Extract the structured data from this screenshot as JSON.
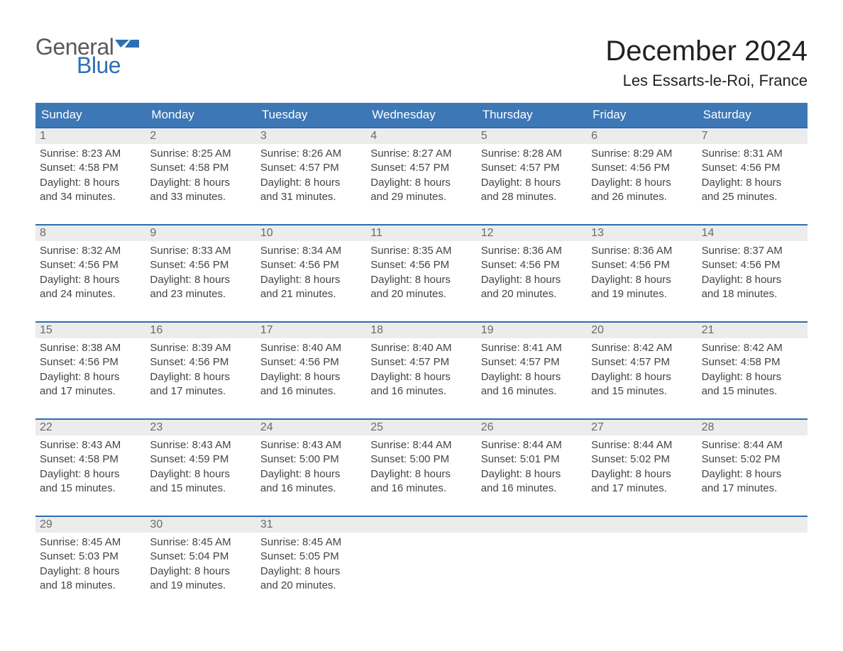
{
  "logo": {
    "line1": "General",
    "line2": "Blue"
  },
  "title": "December 2024",
  "location": "Les Essarts-le-Roi, France",
  "colors": {
    "header_blue": "#3d77b6",
    "accent_blue": "#2a6db3",
    "row_gray": "#ececec",
    "logo_gray": "#595959",
    "logo_blue": "#2e6fb3",
    "page_bg": "#ffffff",
    "text_dark": "#2b2b2b",
    "text_gray": "#444444"
  },
  "layout": {
    "columns": 7,
    "font_family": "Arial",
    "month_title_fontsize": 40,
    "location_fontsize": 22,
    "weekday_fontsize": 17,
    "daynum_fontsize": 16,
    "body_fontsize": 15
  },
  "weekdays": [
    "Sunday",
    "Monday",
    "Tuesday",
    "Wednesday",
    "Thursday",
    "Friday",
    "Saturday"
  ],
  "weeks": [
    [
      {
        "day": "1",
        "sunrise": "Sunrise: 8:23 AM",
        "sunset": "Sunset: 4:58 PM",
        "daylight1": "Daylight: 8 hours",
        "daylight2": "and 34 minutes."
      },
      {
        "day": "2",
        "sunrise": "Sunrise: 8:25 AM",
        "sunset": "Sunset: 4:58 PM",
        "daylight1": "Daylight: 8 hours",
        "daylight2": "and 33 minutes."
      },
      {
        "day": "3",
        "sunrise": "Sunrise: 8:26 AM",
        "sunset": "Sunset: 4:57 PM",
        "daylight1": "Daylight: 8 hours",
        "daylight2": "and 31 minutes."
      },
      {
        "day": "4",
        "sunrise": "Sunrise: 8:27 AM",
        "sunset": "Sunset: 4:57 PM",
        "daylight1": "Daylight: 8 hours",
        "daylight2": "and 29 minutes."
      },
      {
        "day": "5",
        "sunrise": "Sunrise: 8:28 AM",
        "sunset": "Sunset: 4:57 PM",
        "daylight1": "Daylight: 8 hours",
        "daylight2": "and 28 minutes."
      },
      {
        "day": "6",
        "sunrise": "Sunrise: 8:29 AM",
        "sunset": "Sunset: 4:56 PM",
        "daylight1": "Daylight: 8 hours",
        "daylight2": "and 26 minutes."
      },
      {
        "day": "7",
        "sunrise": "Sunrise: 8:31 AM",
        "sunset": "Sunset: 4:56 PM",
        "daylight1": "Daylight: 8 hours",
        "daylight2": "and 25 minutes."
      }
    ],
    [
      {
        "day": "8",
        "sunrise": "Sunrise: 8:32 AM",
        "sunset": "Sunset: 4:56 PM",
        "daylight1": "Daylight: 8 hours",
        "daylight2": "and 24 minutes."
      },
      {
        "day": "9",
        "sunrise": "Sunrise: 8:33 AM",
        "sunset": "Sunset: 4:56 PM",
        "daylight1": "Daylight: 8 hours",
        "daylight2": "and 23 minutes."
      },
      {
        "day": "10",
        "sunrise": "Sunrise: 8:34 AM",
        "sunset": "Sunset: 4:56 PM",
        "daylight1": "Daylight: 8 hours",
        "daylight2": "and 21 minutes."
      },
      {
        "day": "11",
        "sunrise": "Sunrise: 8:35 AM",
        "sunset": "Sunset: 4:56 PM",
        "daylight1": "Daylight: 8 hours",
        "daylight2": "and 20 minutes."
      },
      {
        "day": "12",
        "sunrise": "Sunrise: 8:36 AM",
        "sunset": "Sunset: 4:56 PM",
        "daylight1": "Daylight: 8 hours",
        "daylight2": "and 20 minutes."
      },
      {
        "day": "13",
        "sunrise": "Sunrise: 8:36 AM",
        "sunset": "Sunset: 4:56 PM",
        "daylight1": "Daylight: 8 hours",
        "daylight2": "and 19 minutes."
      },
      {
        "day": "14",
        "sunrise": "Sunrise: 8:37 AM",
        "sunset": "Sunset: 4:56 PM",
        "daylight1": "Daylight: 8 hours",
        "daylight2": "and 18 minutes."
      }
    ],
    [
      {
        "day": "15",
        "sunrise": "Sunrise: 8:38 AM",
        "sunset": "Sunset: 4:56 PM",
        "daylight1": "Daylight: 8 hours",
        "daylight2": "and 17 minutes."
      },
      {
        "day": "16",
        "sunrise": "Sunrise: 8:39 AM",
        "sunset": "Sunset: 4:56 PM",
        "daylight1": "Daylight: 8 hours",
        "daylight2": "and 17 minutes."
      },
      {
        "day": "17",
        "sunrise": "Sunrise: 8:40 AM",
        "sunset": "Sunset: 4:56 PM",
        "daylight1": "Daylight: 8 hours",
        "daylight2": "and 16 minutes."
      },
      {
        "day": "18",
        "sunrise": "Sunrise: 8:40 AM",
        "sunset": "Sunset: 4:57 PM",
        "daylight1": "Daylight: 8 hours",
        "daylight2": "and 16 minutes."
      },
      {
        "day": "19",
        "sunrise": "Sunrise: 8:41 AM",
        "sunset": "Sunset: 4:57 PM",
        "daylight1": "Daylight: 8 hours",
        "daylight2": "and 16 minutes."
      },
      {
        "day": "20",
        "sunrise": "Sunrise: 8:42 AM",
        "sunset": "Sunset: 4:57 PM",
        "daylight1": "Daylight: 8 hours",
        "daylight2": "and 15 minutes."
      },
      {
        "day": "21",
        "sunrise": "Sunrise: 8:42 AM",
        "sunset": "Sunset: 4:58 PM",
        "daylight1": "Daylight: 8 hours",
        "daylight2": "and 15 minutes."
      }
    ],
    [
      {
        "day": "22",
        "sunrise": "Sunrise: 8:43 AM",
        "sunset": "Sunset: 4:58 PM",
        "daylight1": "Daylight: 8 hours",
        "daylight2": "and 15 minutes."
      },
      {
        "day": "23",
        "sunrise": "Sunrise: 8:43 AM",
        "sunset": "Sunset: 4:59 PM",
        "daylight1": "Daylight: 8 hours",
        "daylight2": "and 15 minutes."
      },
      {
        "day": "24",
        "sunrise": "Sunrise: 8:43 AM",
        "sunset": "Sunset: 5:00 PM",
        "daylight1": "Daylight: 8 hours",
        "daylight2": "and 16 minutes."
      },
      {
        "day": "25",
        "sunrise": "Sunrise: 8:44 AM",
        "sunset": "Sunset: 5:00 PM",
        "daylight1": "Daylight: 8 hours",
        "daylight2": "and 16 minutes."
      },
      {
        "day": "26",
        "sunrise": "Sunrise: 8:44 AM",
        "sunset": "Sunset: 5:01 PM",
        "daylight1": "Daylight: 8 hours",
        "daylight2": "and 16 minutes."
      },
      {
        "day": "27",
        "sunrise": "Sunrise: 8:44 AM",
        "sunset": "Sunset: 5:02 PM",
        "daylight1": "Daylight: 8 hours",
        "daylight2": "and 17 minutes."
      },
      {
        "day": "28",
        "sunrise": "Sunrise: 8:44 AM",
        "sunset": "Sunset: 5:02 PM",
        "daylight1": "Daylight: 8 hours",
        "daylight2": "and 17 minutes."
      }
    ],
    [
      {
        "day": "29",
        "sunrise": "Sunrise: 8:45 AM",
        "sunset": "Sunset: 5:03 PM",
        "daylight1": "Daylight: 8 hours",
        "daylight2": "and 18 minutes."
      },
      {
        "day": "30",
        "sunrise": "Sunrise: 8:45 AM",
        "sunset": "Sunset: 5:04 PM",
        "daylight1": "Daylight: 8 hours",
        "daylight2": "and 19 minutes."
      },
      {
        "day": "31",
        "sunrise": "Sunrise: 8:45 AM",
        "sunset": "Sunset: 5:05 PM",
        "daylight1": "Daylight: 8 hours",
        "daylight2": "and 20 minutes."
      },
      null,
      null,
      null,
      null
    ]
  ]
}
